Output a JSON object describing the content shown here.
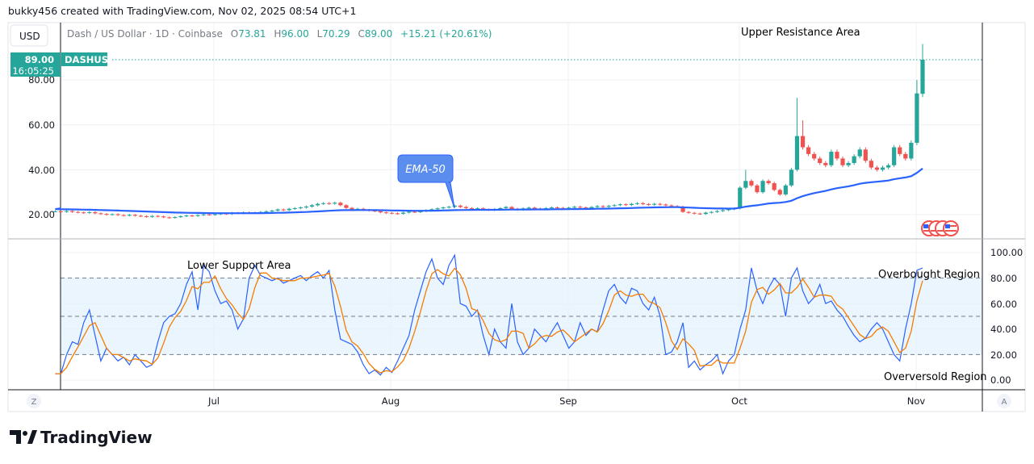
{
  "header": {
    "credit": "bukky456 created with TradingView.com, Nov 02, 2025 08:54 UTC+1"
  },
  "legend": {
    "symbol": "Dash / US Dollar · 1D · Coinbase",
    "open_label": "O",
    "open": "73.81",
    "high_label": "H",
    "high": "96.00",
    "low_label": "L",
    "low": "70.29",
    "close_label": "C",
    "close": "89.00",
    "change": "+15.21 (+20.61%)"
  },
  "currency_button": "USD",
  "price_tag": {
    "price": "89.00",
    "countdown": "16:05:25",
    "ticker": "DASHUSD"
  },
  "price_axis": [
    "20.00",
    "40.00",
    "60.00",
    "80.00"
  ],
  "osc_axis": [
    "0.00",
    "20.00",
    "40.00",
    "60.00",
    "80.00",
    "100.00"
  ],
  "time_axis": [
    "Jul",
    "Aug",
    "Sep",
    "Oct",
    "Nov"
  ],
  "annotations": {
    "upper": "Upper Resistance Area",
    "lower": "Lower Support Area",
    "overbought": "Overbought Region",
    "oversold": "Overversold Region",
    "ema_callout": "EMA-50"
  },
  "corner_left": "Z",
  "corner_right": "A",
  "brand": "TradingView",
  "colors": {
    "up": "#26a69a",
    "down": "#ef5350",
    "ema": "#2962ff",
    "k": "#2962ff",
    "d": "#f57c00",
    "band": "#e3f2fd"
  },
  "chart_data": {
    "type": "candlestick",
    "first_date": "Jun 03, 2025",
    "last_date": "Nov 02, 2025",
    "closes": [
      21.5,
      21.3,
      21.6,
      21.2,
      21.0,
      20.8,
      21.1,
      20.6,
      20.3,
      20.0,
      20.2,
      19.8,
      19.6,
      19.9,
      19.5,
      19.3,
      19.0,
      19.4,
      19.2,
      18.8,
      18.6,
      18.9,
      19.3,
      19.6,
      19.4,
      19.8,
      20.1,
      19.9,
      20.2,
      20.5,
      20.3,
      20.8,
      20.6,
      21.0,
      20.7,
      20.9,
      21.2,
      21.5,
      21.8,
      22.3,
      22.0,
      22.6,
      22.9,
      23.2,
      23.6,
      24.2,
      24.8,
      25.1,
      24.9,
      25.3,
      24.2,
      23.0,
      22.4,
      22.6,
      22.1,
      21.8,
      21.5,
      21.0,
      20.8,
      20.6,
      20.4,
      20.9,
      21.3,
      21.1,
      21.6,
      22.0,
      22.4,
      22.8,
      23.2,
      23.5,
      24.0,
      23.4,
      22.9,
      22.6,
      22.8,
      22.3,
      22.1,
      22.5,
      22.9,
      23.4,
      22.6,
      22.2,
      22.8,
      23.1,
      22.7,
      22.4,
      22.9,
      23.2,
      23.0,
      22.8,
      23.1,
      23.5,
      23.2,
      22.9,
      23.4,
      23.8,
      23.5,
      23.9,
      24.2,
      24.6,
      24.3,
      24.8,
      25.1,
      24.7,
      24.4,
      24.8,
      24.5,
      24.1,
      23.8,
      23.5,
      21.2,
      20.8,
      20.5,
      20.3,
      20.9,
      21.2,
      21.6,
      22.0,
      22.4,
      22.8,
      32,
      35,
      33,
      30,
      35,
      34,
      31,
      29,
      33,
      40,
      55,
      50,
      47,
      45,
      43,
      42,
      48,
      45,
      42,
      43,
      46,
      49,
      44,
      41,
      40,
      41,
      42,
      50,
      47,
      45,
      52,
      74,
      89
    ],
    "high_overrides": [
      [
        121,
        40
      ],
      [
        130,
        72
      ],
      [
        131,
        62
      ],
      [
        151,
        80
      ],
      [
        152,
        96
      ]
    ],
    "last_open": 73.81,
    "ema_period": 50,
    "ylim": [
      10,
      100
    ],
    "oscillator": {
      "ylim": [
        0,
        100
      ],
      "levels": [
        20,
        50,
        80
      ],
      "k": [
        5,
        5,
        20,
        30,
        28,
        45,
        55,
        35,
        15,
        25,
        20,
        15,
        18,
        12,
        20,
        15,
        10,
        12,
        30,
        45,
        50,
        52,
        60,
        75,
        85,
        55,
        90,
        85,
        70,
        60,
        62,
        55,
        40,
        48,
        80,
        90,
        82,
        80,
        78,
        80,
        76,
        78,
        80,
        82,
        78,
        82,
        85,
        80,
        86,
        55,
        32,
        30,
        28,
        22,
        12,
        5,
        8,
        4,
        10,
        6,
        15,
        25,
        35,
        55,
        70,
        85,
        95,
        80,
        75,
        90,
        98,
        60,
        58,
        50,
        55,
        35,
        20,
        40,
        30,
        25,
        60,
        30,
        20,
        25,
        40,
        35,
        30,
        38,
        45,
        35,
        25,
        30,
        45,
        35,
        40,
        38,
        55,
        70,
        75,
        65,
        60,
        72,
        70,
        60,
        55,
        65,
        50,
        20,
        22,
        30,
        45,
        10,
        15,
        8,
        12,
        15,
        20,
        5,
        15,
        20,
        40,
        55,
        88,
        70,
        60,
        72,
        80,
        75,
        50,
        80,
        88,
        70,
        60,
        65,
        75,
        60,
        62,
        55,
        50,
        42,
        35,
        30,
        33,
        40,
        45,
        40,
        30,
        20,
        15,
        40,
        60,
        86,
        88
      ],
      "d_smoothing": 3
    }
  }
}
